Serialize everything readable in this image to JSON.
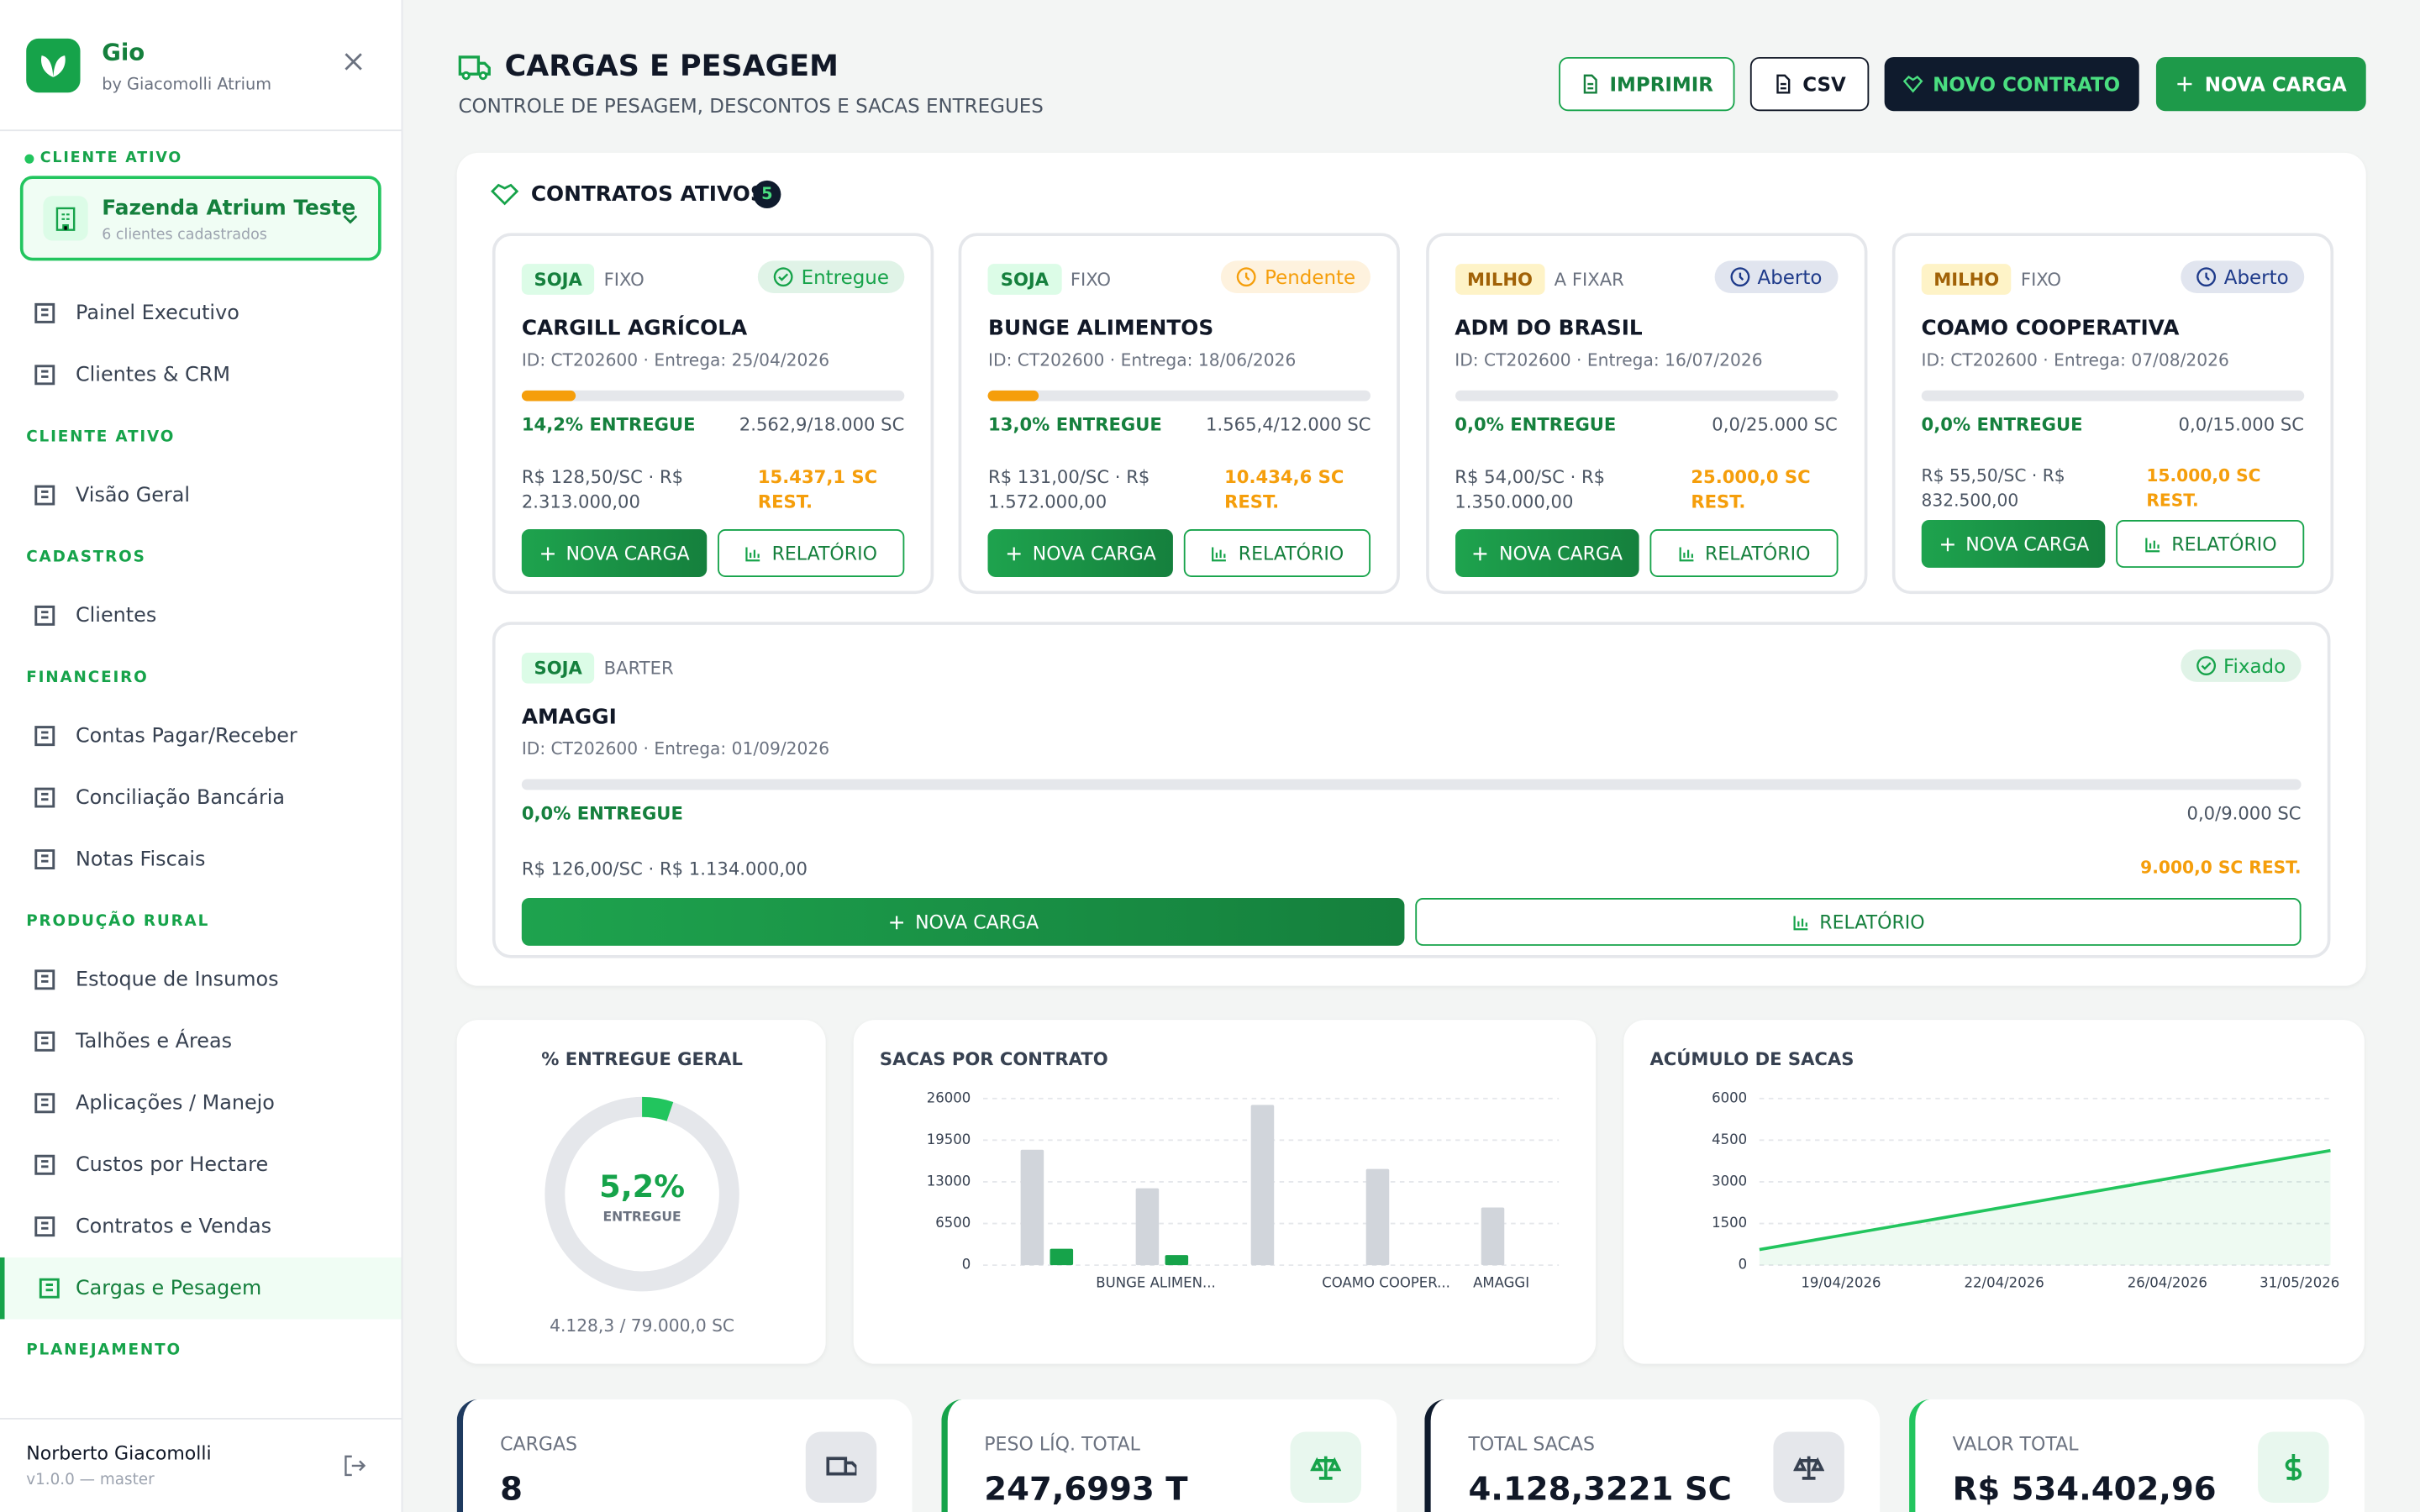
{
  "sidebar": {
    "brand": "Gio",
    "brand_sub": "by Giacomolli Atrium",
    "client_label": "CLIENTE ATIVO",
    "client_name": "Fazenda Atrium Teste",
    "client_sub": "6 clientes cadastrados",
    "groups": [
      {
        "items": [
          {
            "label": "Painel Executivo"
          },
          {
            "label": "Clientes & CRM"
          }
        ]
      },
      {
        "title": "CLIENTE ATIVO",
        "items": [
          {
            "label": "Visão Geral"
          }
        ]
      },
      {
        "title": "CADASTROS",
        "items": [
          {
            "label": "Clientes"
          }
        ]
      },
      {
        "title": "FINANCEIRO",
        "items": [
          {
            "label": "Contas Pagar/Receber"
          },
          {
            "label": "Conciliação Bancária"
          },
          {
            "label": "Notas Fiscais"
          }
        ]
      },
      {
        "title": "PRODUÇÃO RURAL",
        "items": [
          {
            "label": "Estoque de Insumos"
          },
          {
            "label": "Talhões e Áreas"
          },
          {
            "label": "Aplicações / Manejo"
          },
          {
            "label": "Custos por Hectare"
          },
          {
            "label": "Contratos e Vendas"
          },
          {
            "label": "Cargas e Pesagem",
            "active": true
          }
        ]
      },
      {
        "title": "PLANEJAMENTO",
        "items": []
      }
    ],
    "user": "Norberto Giacomolli",
    "version": "v1.0.0 — master"
  },
  "header": {
    "title": "CARGAS E PESAGEM",
    "subtitle": "CONTROLE DE PESAGEM, DESCONTOS E SACAS ENTREGUES",
    "buttons": [
      "IMPRIMIR",
      "CSV",
      "NOVO CONTRATO",
      "NOVA CARGA"
    ]
  },
  "contracts": {
    "title": "CONTRATOS ATIVOS",
    "count": 5,
    "cards": [
      {
        "crop": "SOJA",
        "crop_color": "#dcfce7",
        "kind": "FIXO",
        "status": "Entregue",
        "status_color": "#16a34a",
        "name": "CARGILL AGRÍCOLA",
        "id_line": "ID: CT202600 · Entrega: 25/04/2026",
        "progress": {
          "value": 14.2,
          "label": "14,2% ENTREGUE"
        },
        "qty": "2.562,9/18.000 SC",
        "price": "R$ 128,50/SC · R$ 2.313.000,00",
        "remaining": "15.437,1 SC REST.",
        "actions": [
          "NOVA CARGA",
          "RELATÓRIO"
        ]
      },
      {
        "crop": "SOJA",
        "crop_color": "#dcfce7",
        "kind": "FIXO",
        "status": "Pendente",
        "status_color": "#f59e0b",
        "name": "BUNGE ALIMENTOS",
        "id_line": "ID: CT202600 · Entrega: 18/06/2026",
        "progress": {
          "value": 13.0,
          "label": "13,0% ENTREGUE"
        },
        "qty": "1.565,4/12.000 SC",
        "price": "R$ 131,00/SC · R$ 1.572.000,00",
        "remaining": "10.434,6 SC REST.",
        "actions": [
          "NOVA CARGA",
          "RELATÓRIO"
        ]
      },
      {
        "crop": "MILHO",
        "crop_color": "#fef3c7",
        "kind": "A FIXAR",
        "status": "Aberto",
        "status_color": "#1e3a8a",
        "name": "ADM DO BRASIL",
        "id_line": "ID: CT202600 · Entrega: 16/07/2026",
        "progress": {
          "value": 0.0,
          "label": "0,0% ENTREGUE"
        },
        "qty": "0,0/25.000 SC",
        "price": "R$ 54,00/SC · R$ 1.350.000,00",
        "remaining": "25.000,0 SC REST.",
        "actions": [
          "NOVA CARGA",
          "RELATÓRIO"
        ]
      },
      {
        "crop": "MILHO",
        "crop_color": "#fef3c7",
        "kind": "FIXO",
        "status": "Aberto",
        "status_color": "#1e3a8a",
        "name": "COAMO COOPERATIVA",
        "id_line": "ID: CT202600 · Entrega: 07/08/2026",
        "progress": {
          "value": 0.0,
          "label": "0,0% ENTREGUE"
        },
        "qty": "0,0/15.000 SC",
        "price": "R$ 55,50/SC · R$ 832.500,00",
        "remaining": "15.000,0 SC REST.",
        "actions": [
          "NOVA CARGA",
          "RELATÓRIO"
        ]
      },
      {
        "crop": "SOJA",
        "crop_color": "#dcfce7",
        "kind": "BARTER",
        "status": "Fixado",
        "status_color": "#16a34a",
        "name": "AMAGGI",
        "id_line": "ID: CT202600 · Entrega: 01/09/2026",
        "progress": {
          "value": 0.0,
          "label": "0,0% ENTREGUE"
        },
        "qty": "0,0/9.000 SC",
        "price": "R$ 126,00/SC · R$ 1.134.000,00",
        "remaining": "9.000,0 SC REST.",
        "actions": [
          "NOVA CARGA",
          "RELATÓRIO"
        ]
      }
    ]
  },
  "chart_data": [
    {
      "type": "donut",
      "title": "% ENTREGUE GERAL",
      "values": [
        5.2
      ],
      "value_labels": [
        "5,2%"
      ],
      "center_caption": "ENTREGUE",
      "footer": "4.128,3 / 79.000,0 SC",
      "color": "#22c55e",
      "track_color": "#e5e7eb"
    },
    {
      "type": "bar",
      "title": "SACAS POR CONTRATO",
      "categories": [
        null,
        "BUNGE ALIMEN...",
        null,
        "COAMO COOPER...",
        "AMAGGI"
      ],
      "series": [
        {
          "color": "#d1d5db",
          "values": [
            18000,
            12000,
            25000,
            15000,
            9000
          ]
        },
        {
          "color": "#16a34a",
          "values": [
            2562.9,
            1565.4,
            0,
            0,
            0
          ]
        }
      ],
      "ylim": [
        0,
        26000
      ],
      "yticks": [
        0,
        6500,
        13000,
        19500,
        26000
      ],
      "grid": true
    },
    {
      "type": "line",
      "title": "ACÚMULO DE SACAS",
      "categories": [
        null,
        "19/04/2026",
        null,
        "22/04/2026",
        null,
        "26/04/2026",
        null,
        "31/05/2026"
      ],
      "values": [
        560,
        1070,
        1580,
        2090,
        2600,
        3110,
        3620,
        4128.3
      ],
      "color": "#22c55e",
      "ylim": [
        0,
        6000
      ],
      "yticks": [
        0,
        1500,
        3000,
        4500,
        6000
      ],
      "grid": true
    }
  ],
  "kpis": [
    {
      "label": "CARGAS",
      "value": "8",
      "color": "#1e3a5f"
    },
    {
      "label": "PESO LÍQ. TOTAL",
      "value": "247,6993 T",
      "color": "#16a34a"
    },
    {
      "label": "TOTAL SACAS",
      "value": "4.128,3221 SC",
      "color": "#0f1b2d"
    },
    {
      "label": "VALOR TOTAL",
      "value": "R$ 534.402,96",
      "color": "#22c55e"
    }
  ]
}
